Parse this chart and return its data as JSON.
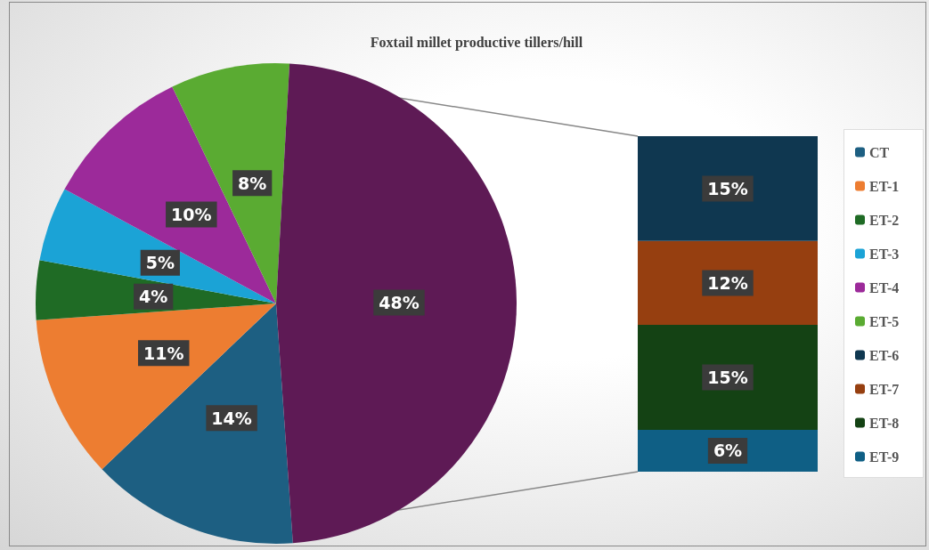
{
  "chart_data": [
    {
      "type": "pie",
      "title": "Foxtail millet productive tillers/hill",
      "categories": [
        "CT",
        "ET-1",
        "ET-2",
        "ET-3",
        "ET-4",
        "ET-5",
        null
      ],
      "values": [
        14,
        11,
        4,
        5,
        10,
        8,
        48
      ],
      "value_labels": [
        "14%",
        "11%",
        "4%",
        "5%",
        "10%",
        "8%",
        "48%"
      ],
      "colors": [
        "#1d5f82",
        "#ed7d31",
        "#1f6b25",
        "#1ba3d6",
        "#9c2a9a",
        "#5aab32",
        "#5e1a55"
      ],
      "legend": "right"
    },
    {
      "type": "bar",
      "stacked": true,
      "categories": [
        null
      ],
      "legend": "right",
      "series": [
        {
          "name": "ET-9",
          "color": "#0f5f85",
          "values": [
            6
          ],
          "value_labels": [
            "6%"
          ]
        },
        {
          "name": "ET-8",
          "color": "#144214",
          "values": [
            15
          ],
          "value_labels": [
            "15%"
          ]
        },
        {
          "name": "ET-7",
          "color": "#963f10",
          "values": [
            12
          ],
          "value_labels": [
            "12%"
          ]
        },
        {
          "name": "ET-6",
          "color": "#0f3750",
          "values": [
            15
          ],
          "value_labels": [
            "15%"
          ]
        }
      ]
    }
  ]
}
